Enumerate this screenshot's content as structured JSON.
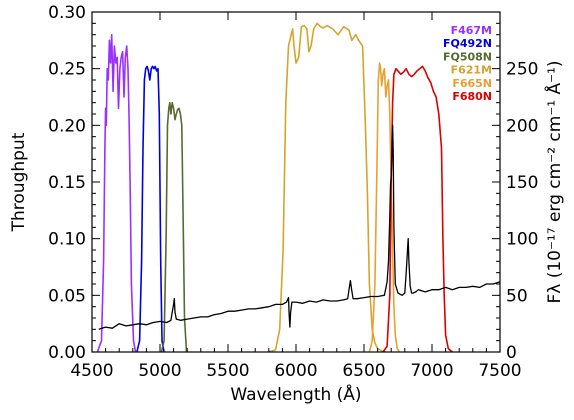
{
  "chart_data": {
    "type": "line",
    "xlabel": "Wavelength (Å)",
    "ylabel_left": "Throughput",
    "ylabel_right": "Fλ (10⁻¹⁷ erg cm⁻² cm⁻¹ Å⁻¹)",
    "xlim": [
      4500,
      7500
    ],
    "ylim_left": [
      0,
      0.3
    ],
    "ylim_right": [
      0,
      300
    ],
    "x_ticks": [
      4500,
      5000,
      5500,
      6000,
      6500,
      7000,
      7500
    ],
    "x_tick_labels": [
      "4500",
      "5000",
      "5500",
      "6000",
      "6500",
      "7000",
      "7500"
    ],
    "y_left_ticks": [
      0,
      0.05,
      0.1,
      0.15,
      0.2,
      0.25,
      0.3
    ],
    "y_left_tick_labels": [
      "0.00",
      "0.05",
      "0.10",
      "0.15",
      "0.20",
      "0.25",
      "0.30"
    ],
    "y_right_ticks": [
      0,
      50,
      100,
      150,
      200,
      250
    ],
    "y_right_tick_labels": [
      "0",
      "50",
      "100",
      "150",
      "200",
      "250"
    ],
    "legend_position": "top-right",
    "legend": [
      {
        "label": "F467M",
        "color": "#9b30ff"
      },
      {
        "label": "FQ492N",
        "color": "#0000dd"
      },
      {
        "label": "FQ508N",
        "color": "#556b2f"
      },
      {
        "label": "F621M",
        "color": "#d4a52e"
      },
      {
        "label": "F665N",
        "color": "#e8a030"
      },
      {
        "label": "F680N",
        "color": "#dd0000"
      }
    ],
    "series": [
      {
        "name": "F467M",
        "axis": "left",
        "color": "#9b30ff",
        "x": [
          4540,
          4570,
          4585,
          4595,
          4600,
          4605,
          4612,
          4620,
          4628,
          4636,
          4645,
          4655,
          4665,
          4675,
          4685,
          4695,
          4705,
          4715,
          4725,
          4735,
          4745,
          4755,
          4765,
          4772,
          4780,
          4790,
          4805,
          4820
        ],
        "y": [
          0,
          0.01,
          0.08,
          0.18,
          0.215,
          0.2,
          0.25,
          0.24,
          0.275,
          0.255,
          0.28,
          0.23,
          0.27,
          0.255,
          0.26,
          0.215,
          0.25,
          0.26,
          0.265,
          0.225,
          0.26,
          0.27,
          0.25,
          0.21,
          0.15,
          0.06,
          0.01,
          0
        ]
      },
      {
        "name": "FQ492N",
        "axis": "left",
        "color": "#0000dd",
        "x": [
          4830,
          4850,
          4865,
          4875,
          4885,
          4895,
          4905,
          4915,
          4925,
          4935,
          4945,
          4955,
          4965,
          4975,
          4985,
          4995,
          5005,
          5015,
          5030
        ],
        "y": [
          0,
          0.01,
          0.08,
          0.18,
          0.24,
          0.25,
          0.252,
          0.248,
          0.24,
          0.25,
          0.252,
          0.25,
          0.252,
          0.248,
          0.25,
          0.21,
          0.08,
          0.01,
          0
        ]
      },
      {
        "name": "FQ508N",
        "axis": "left",
        "color": "#556b2f",
        "x": [
          5010,
          5030,
          5045,
          5055,
          5065,
          5072,
          5080,
          5090,
          5100,
          5110,
          5120,
          5130,
          5140,
          5150,
          5160,
          5170,
          5180,
          5195
        ],
        "y": [
          0,
          0.01,
          0.1,
          0.2,
          0.215,
          0.22,
          0.21,
          0.22,
          0.215,
          0.205,
          0.21,
          0.214,
          0.215,
          0.21,
          0.2,
          0.12,
          0.03,
          0
        ]
      },
      {
        "name": "F621M",
        "axis": "left",
        "color": "#d4a52e",
        "x": [
          5800,
          5850,
          5880,
          5905,
          5925,
          5945,
          5965,
          5975,
          5985,
          6000,
          6020,
          6040,
          6060,
          6080,
          6095,
          6110,
          6130,
          6155,
          6180,
          6200,
          6230,
          6270,
          6310,
          6350,
          6390,
          6410,
          6440,
          6460,
          6490,
          6510,
          6525,
          6540,
          6560,
          6580,
          6600,
          6630,
          6660
        ],
        "y": [
          0,
          0.002,
          0.02,
          0.09,
          0.22,
          0.27,
          0.28,
          0.285,
          0.27,
          0.255,
          0.26,
          0.287,
          0.288,
          0.285,
          0.265,
          0.27,
          0.285,
          0.29,
          0.287,
          0.286,
          0.288,
          0.285,
          0.28,
          0.287,
          0.284,
          0.275,
          0.28,
          0.275,
          0.27,
          0.2,
          0.14,
          0.06,
          0.02,
          0.008,
          0.003,
          0.001,
          0
        ]
      },
      {
        "name": "F665N",
        "axis": "left",
        "color": "#e8a030",
        "x": [
          6540,
          6560,
          6580,
          6595,
          6605,
          6615,
          6622,
          6630,
          6640,
          6650,
          6660,
          6670,
          6680,
          6690,
          6700,
          6710,
          6720,
          6730,
          6745,
          6760
        ],
        "y": [
          0,
          0.01,
          0.06,
          0.16,
          0.24,
          0.255,
          0.25,
          0.235,
          0.245,
          0.25,
          0.225,
          0.235,
          0.24,
          0.21,
          0.15,
          0.09,
          0.04,
          0.015,
          0.003,
          0
        ]
      },
      {
        "name": "F680N",
        "axis": "left",
        "color": "#dd0000",
        "x": [
          6640,
          6670,
          6690,
          6700,
          6710,
          6720,
          6735,
          6750,
          6770,
          6790,
          6810,
          6830,
          6850,
          6870,
          6890,
          6910,
          6930,
          6950,
          6970,
          6990,
          7010,
          7030,
          7050,
          7070,
          7080,
          7090,
          7100,
          7120,
          7150
        ],
        "y": [
          0,
          0.005,
          0.05,
          0.15,
          0.22,
          0.245,
          0.25,
          0.248,
          0.245,
          0.247,
          0.25,
          0.245,
          0.243,
          0.245,
          0.248,
          0.25,
          0.252,
          0.248,
          0.242,
          0.238,
          0.23,
          0.225,
          0.21,
          0.18,
          0.1,
          0.05,
          0.015,
          0.003,
          0
        ]
      },
      {
        "name": "Spectrum",
        "axis": "right",
        "color": "#000000",
        "x": [
          4550,
          4600,
          4650,
          4700,
          4750,
          4800,
          4850,
          4900,
          4950,
          5000,
          5050,
          5080,
          5090,
          5100,
          5105,
          5110,
          5120,
          5150,
          5200,
          5250,
          5300,
          5350,
          5400,
          5450,
          5500,
          5550,
          5600,
          5650,
          5700,
          5750,
          5800,
          5850,
          5900,
          5930,
          5945,
          5950,
          5955,
          5960,
          5970,
          6000,
          6050,
          6100,
          6150,
          6200,
          6250,
          6300,
          6350,
          6380,
          6390,
          6400,
          6410,
          6420,
          6450,
          6500,
          6550,
          6600,
          6650,
          6670,
          6680,
          6690,
          6695,
          6700,
          6705,
          6710,
          6715,
          6720,
          6730,
          6750,
          6780,
          6800,
          6810,
          6820,
          6825,
          6830,
          6840,
          6850,
          6860,
          6880,
          6900,
          6950,
          7000,
          7050,
          7100,
          7150,
          7200,
          7250,
          7300,
          7350,
          7400,
          7450,
          7500
        ],
        "y": [
          20,
          22,
          21,
          25,
          23,
          24,
          25,
          24,
          26,
          27,
          26,
          28,
          35,
          42,
          47,
          35,
          29,
          28,
          29,
          30,
          31,
          31,
          33,
          34,
          36,
          36,
          37,
          38,
          38,
          39,
          40,
          42,
          42,
          44,
          48,
          32,
          22,
          35,
          44,
          44,
          43,
          45,
          44,
          46,
          45,
          45,
          46,
          47,
          55,
          63,
          54,
          47,
          47,
          48,
          49,
          49,
          50,
          62,
          80,
          120,
          148,
          155,
          172,
          200,
          178,
          110,
          60,
          52,
          50,
          52,
          70,
          90,
          100,
          80,
          58,
          52,
          52,
          53,
          55,
          53,
          55,
          55,
          57,
          55,
          57,
          57,
          58,
          57,
          60,
          60,
          62
        ]
      }
    ]
  }
}
